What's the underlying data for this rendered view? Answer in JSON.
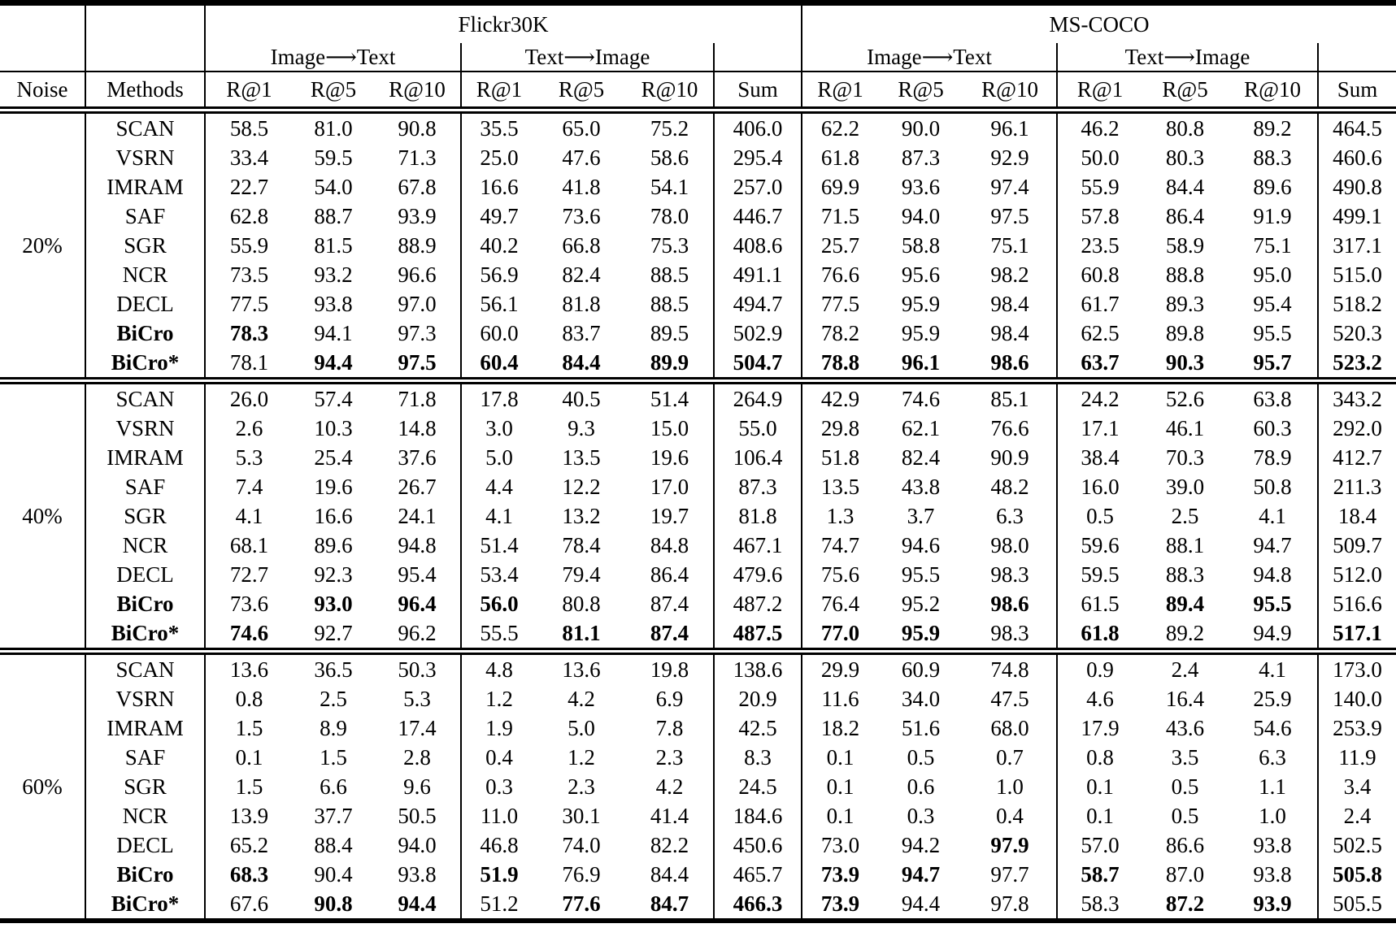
{
  "table": {
    "datasets": [
      "Flickr30K",
      "MS-COCO"
    ],
    "directions": [
      "Image⟶Text",
      "Text⟶Image"
    ],
    "metric_headers": [
      "R@1",
      "R@5",
      "R@10"
    ],
    "sum_label": "Sum",
    "noise_label": "Noise",
    "methods_label": "Methods",
    "blocks": [
      {
        "noise": "20%",
        "rows": [
          {
            "method": "SCAN",
            "bold_method": false,
            "values": [
              "58.5",
              "81.0",
              "90.8",
              "35.5",
              "65.0",
              "75.2",
              "406.0",
              "62.2",
              "90.0",
              "96.1",
              "46.2",
              "80.8",
              "89.2",
              "464.5"
            ],
            "bold": []
          },
          {
            "method": "VSRN",
            "bold_method": false,
            "values": [
              "33.4",
              "59.5",
              "71.3",
              "25.0",
              "47.6",
              "58.6",
              "295.4",
              "61.8",
              "87.3",
              "92.9",
              "50.0",
              "80.3",
              "88.3",
              "460.6"
            ],
            "bold": []
          },
          {
            "method": "IMRAM",
            "bold_method": false,
            "values": [
              "22.7",
              "54.0",
              "67.8",
              "16.6",
              "41.8",
              "54.1",
              "257.0",
              "69.9",
              "93.6",
              "97.4",
              "55.9",
              "84.4",
              "89.6",
              "490.8"
            ],
            "bold": []
          },
          {
            "method": "SAF",
            "bold_method": false,
            "values": [
              "62.8",
              "88.7",
              "93.9",
              "49.7",
              "73.6",
              "78.0",
              "446.7",
              "71.5",
              "94.0",
              "97.5",
              "57.8",
              "86.4",
              "91.9",
              "499.1"
            ],
            "bold": []
          },
          {
            "method": "SGR",
            "bold_method": false,
            "values": [
              "55.9",
              "81.5",
              "88.9",
              "40.2",
              "66.8",
              "75.3",
              "408.6",
              "25.7",
              "58.8",
              "75.1",
              "23.5",
              "58.9",
              "75.1",
              "317.1"
            ],
            "bold": []
          },
          {
            "method": "NCR",
            "bold_method": false,
            "values": [
              "73.5",
              "93.2",
              "96.6",
              "56.9",
              "82.4",
              "88.5",
              "491.1",
              "76.6",
              "95.6",
              "98.2",
              "60.8",
              "88.8",
              "95.0",
              "515.0"
            ],
            "bold": []
          },
          {
            "method": "DECL",
            "bold_method": false,
            "values": [
              "77.5",
              "93.8",
              "97.0",
              "56.1",
              "81.8",
              "88.5",
              "494.7",
              "77.5",
              "95.9",
              "98.4",
              "61.7",
              "89.3",
              "95.4",
              "518.2"
            ],
            "bold": []
          },
          {
            "method": "BiCro",
            "bold_method": true,
            "values": [
              "78.3",
              "94.1",
              "97.3",
              "60.0",
              "83.7",
              "89.5",
              "502.9",
              "78.2",
              "95.9",
              "98.4",
              "62.5",
              "89.8",
              "95.5",
              "520.3"
            ],
            "bold": [
              0
            ]
          },
          {
            "method": "BiCro*",
            "bold_method": true,
            "values": [
              "78.1",
              "94.4",
              "97.5",
              "60.4",
              "84.4",
              "89.9",
              "504.7",
              "78.8",
              "96.1",
              "98.6",
              "63.7",
              "90.3",
              "95.7",
              "523.2"
            ],
            "bold": [
              1,
              2,
              3,
              4,
              5,
              6,
              7,
              8,
              9,
              10,
              11,
              12,
              13
            ]
          }
        ]
      },
      {
        "noise": "40%",
        "rows": [
          {
            "method": "SCAN",
            "bold_method": false,
            "values": [
              "26.0",
              "57.4",
              "71.8",
              "17.8",
              "40.5",
              "51.4",
              "264.9",
              "42.9",
              "74.6",
              "85.1",
              "24.2",
              "52.6",
              "63.8",
              "343.2"
            ],
            "bold": []
          },
          {
            "method": "VSRN",
            "bold_method": false,
            "values": [
              "2.6",
              "10.3",
              "14.8",
              "3.0",
              "9.3",
              "15.0",
              "55.0",
              "29.8",
              "62.1",
              "76.6",
              "17.1",
              "46.1",
              "60.3",
              "292.0"
            ],
            "bold": []
          },
          {
            "method": "IMRAM",
            "bold_method": false,
            "values": [
              "5.3",
              "25.4",
              "37.6",
              "5.0",
              "13.5",
              "19.6",
              "106.4",
              "51.8",
              "82.4",
              "90.9",
              "38.4",
              "70.3",
              "78.9",
              "412.7"
            ],
            "bold": []
          },
          {
            "method": "SAF",
            "bold_method": false,
            "values": [
              "7.4",
              "19.6",
              "26.7",
              "4.4",
              "12.2",
              "17.0",
              "87.3",
              "13.5",
              "43.8",
              "48.2",
              "16.0",
              "39.0",
              "50.8",
              "211.3"
            ],
            "bold": []
          },
          {
            "method": "SGR",
            "bold_method": false,
            "values": [
              "4.1",
              "16.6",
              "24.1",
              "4.1",
              "13.2",
              "19.7",
              "81.8",
              "1.3",
              "3.7",
              "6.3",
              "0.5",
              "2.5",
              "4.1",
              "18.4"
            ],
            "bold": []
          },
          {
            "method": "NCR",
            "bold_method": false,
            "values": [
              "68.1",
              "89.6",
              "94.8",
              "51.4",
              "78.4",
              "84.8",
              "467.1",
              "74.7",
              "94.6",
              "98.0",
              "59.6",
              "88.1",
              "94.7",
              "509.7"
            ],
            "bold": []
          },
          {
            "method": "DECL",
            "bold_method": false,
            "values": [
              "72.7",
              "92.3",
              "95.4",
              "53.4",
              "79.4",
              "86.4",
              "479.6",
              "75.6",
              "95.5",
              "98.3",
              "59.5",
              "88.3",
              "94.8",
              "512.0"
            ],
            "bold": []
          },
          {
            "method": "BiCro",
            "bold_method": true,
            "values": [
              "73.6",
              "93.0",
              "96.4",
              "56.0",
              "80.8",
              "87.4",
              "487.2",
              "76.4",
              "95.2",
              "98.6",
              "61.5",
              "89.4",
              "95.5",
              "516.6"
            ],
            "bold": [
              1,
              2,
              3,
              9,
              11,
              12
            ]
          },
          {
            "method": "BiCro*",
            "bold_method": true,
            "values": [
              "74.6",
              "92.7",
              "96.2",
              "55.5",
              "81.1",
              "87.4",
              "487.5",
              "77.0",
              "95.9",
              "98.3",
              "61.8",
              "89.2",
              "94.9",
              "517.1"
            ],
            "bold": [
              0,
              4,
              5,
              6,
              7,
              8,
              10,
              13
            ]
          }
        ]
      },
      {
        "noise": "60%",
        "rows": [
          {
            "method": "SCAN",
            "bold_method": false,
            "values": [
              "13.6",
              "36.5",
              "50.3",
              "4.8",
              "13.6",
              "19.8",
              "138.6",
              "29.9",
              "60.9",
              "74.8",
              "0.9",
              "2.4",
              "4.1",
              "173.0"
            ],
            "bold": []
          },
          {
            "method": "VSRN",
            "bold_method": false,
            "values": [
              "0.8",
              "2.5",
              "5.3",
              "1.2",
              "4.2",
              "6.9",
              "20.9",
              "11.6",
              "34.0",
              "47.5",
              "4.6",
              "16.4",
              "25.9",
              "140.0"
            ],
            "bold": []
          },
          {
            "method": "IMRAM",
            "bold_method": false,
            "values": [
              "1.5",
              "8.9",
              "17.4",
              "1.9",
              "5.0",
              "7.8",
              "42.5",
              "18.2",
              "51.6",
              "68.0",
              "17.9",
              "43.6",
              "54.6",
              "253.9"
            ],
            "bold": []
          },
          {
            "method": "SAF",
            "bold_method": false,
            "values": [
              "0.1",
              "1.5",
              "2.8",
              "0.4",
              "1.2",
              "2.3",
              "8.3",
              "0.1",
              "0.5",
              "0.7",
              "0.8",
              "3.5",
              "6.3",
              "11.9"
            ],
            "bold": []
          },
          {
            "method": "SGR",
            "bold_method": false,
            "values": [
              "1.5",
              "6.6",
              "9.6",
              "0.3",
              "2.3",
              "4.2",
              "24.5",
              "0.1",
              "0.6",
              "1.0",
              "0.1",
              "0.5",
              "1.1",
              "3.4"
            ],
            "bold": []
          },
          {
            "method": "NCR",
            "bold_method": false,
            "values": [
              "13.9",
              "37.7",
              "50.5",
              "11.0",
              "30.1",
              "41.4",
              "184.6",
              "0.1",
              "0.3",
              "0.4",
              "0.1",
              "0.5",
              "1.0",
              "2.4"
            ],
            "bold": []
          },
          {
            "method": "DECL",
            "bold_method": false,
            "values": [
              "65.2",
              "88.4",
              "94.0",
              "46.8",
              "74.0",
              "82.2",
              "450.6",
              "73.0",
              "94.2",
              "97.9",
              "57.0",
              "86.6",
              "93.8",
              "502.5"
            ],
            "bold": [
              9
            ]
          },
          {
            "method": "BiCro",
            "bold_method": true,
            "values": [
              "68.3",
              "90.4",
              "93.8",
              "51.9",
              "76.9",
              "84.4",
              "465.7",
              "73.9",
              "94.7",
              "97.7",
              "58.7",
              "87.0",
              "93.8",
              "505.8"
            ],
            "bold": [
              0,
              3,
              7,
              8,
              10,
              13
            ]
          },
          {
            "method": "BiCro*",
            "bold_method": true,
            "values": [
              "67.6",
              "90.8",
              "94.4",
              "51.2",
              "77.6",
              "84.7",
              "466.3",
              "73.9",
              "94.4",
              "97.8",
              "58.3",
              "87.2",
              "93.9",
              "505.5"
            ],
            "bold": [
              1,
              2,
              4,
              5,
              6,
              7,
              11,
              12
            ]
          }
        ]
      }
    ]
  }
}
